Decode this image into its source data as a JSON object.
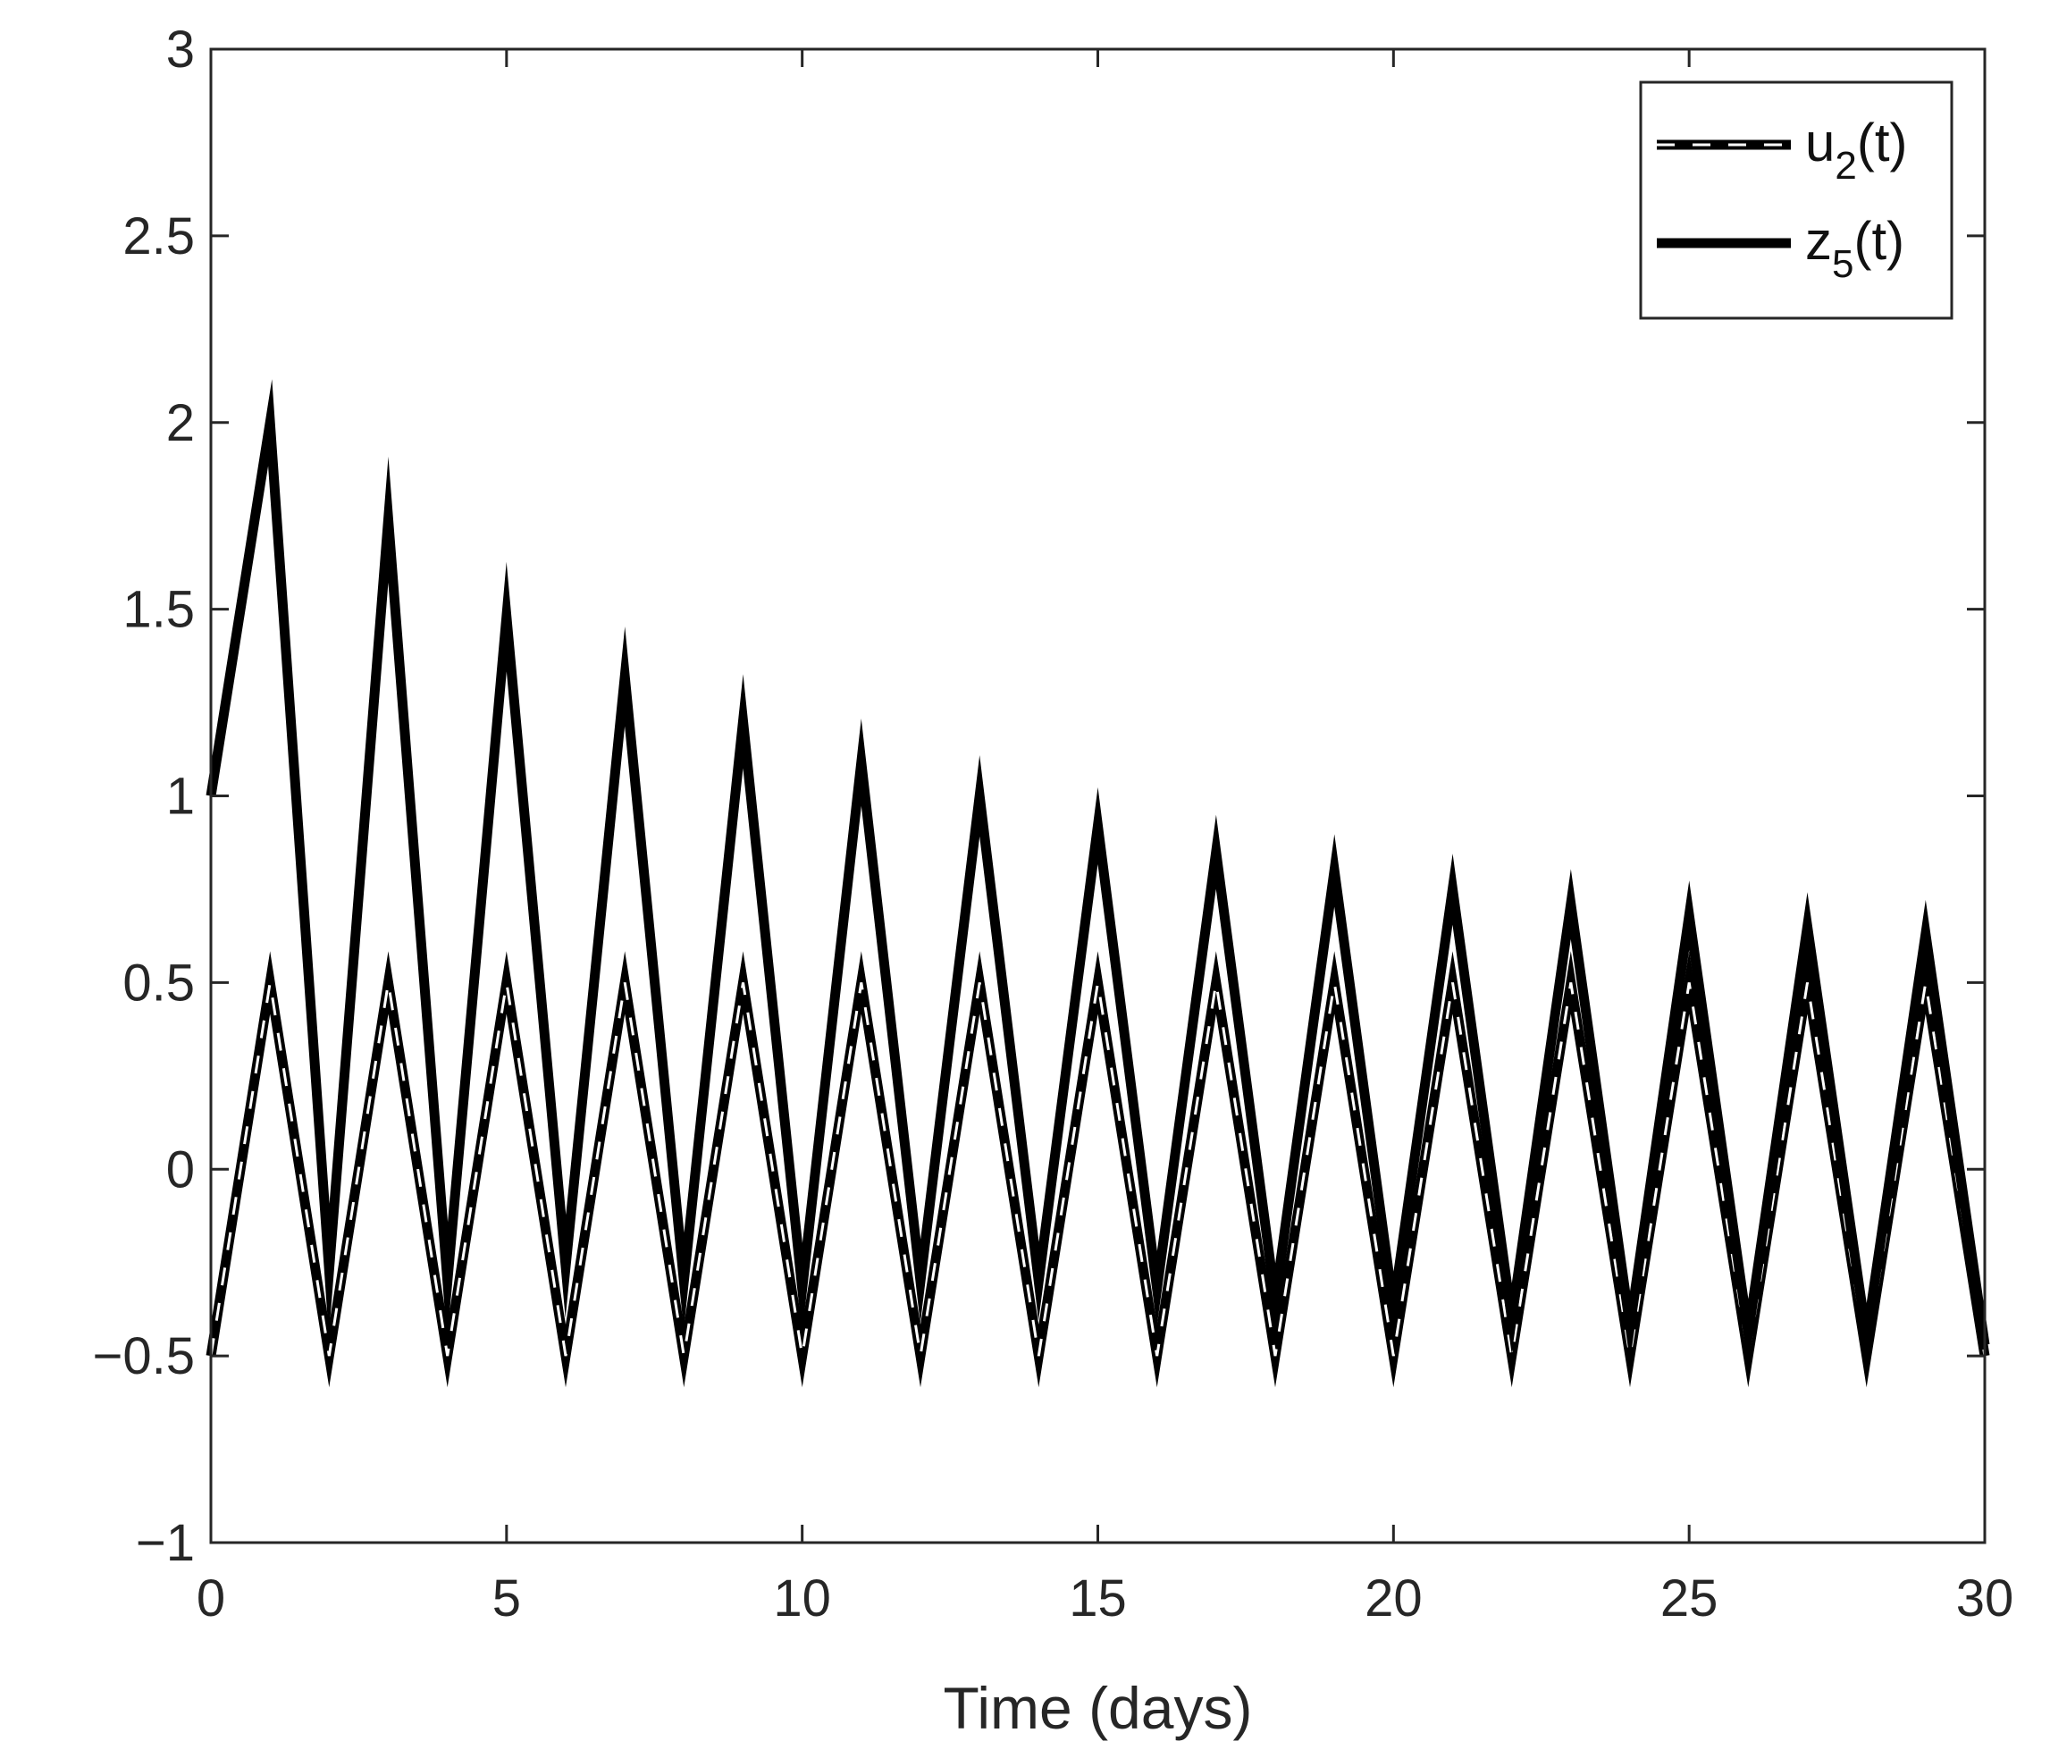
{
  "chart_data": {
    "type": "line",
    "title": "",
    "xlabel": "Time (days)",
    "ylabel": "",
    "xlim": [
      0,
      30
    ],
    "ylim": [
      -1,
      3
    ],
    "xticks": [
      0,
      5,
      10,
      15,
      20,
      25,
      30
    ],
    "xtick_labels": [
      "0",
      "5",
      "10",
      "15",
      "20",
      "25",
      "30"
    ],
    "yticks": [
      -1,
      -0.5,
      0,
      0.5,
      1,
      1.5,
      2,
      2.5,
      3
    ],
    "ytick_labels": [
      "−1",
      "−0.5",
      "0",
      "0.5",
      "1",
      "1.5",
      "2",
      "2.5",
      "3"
    ],
    "grid": false,
    "legend_position": "top-right",
    "series": [
      {
        "name": "u2(t)",
        "legend_main": "u",
        "legend_sub": "2",
        "legend_tail": "(t)",
        "style": "dashed",
        "color": "#000000",
        "x": [
          0,
          1,
          2,
          3,
          4,
          5,
          6,
          7,
          8,
          9,
          10,
          11,
          12,
          13,
          14,
          15,
          16,
          17,
          18,
          19,
          20,
          21,
          22,
          23,
          24,
          25,
          26,
          27,
          28,
          29,
          30
        ],
        "y": [
          -0.5,
          0.5,
          -0.5,
          0.5,
          -0.5,
          0.5,
          -0.5,
          0.5,
          -0.5,
          0.5,
          -0.5,
          0.5,
          -0.5,
          0.5,
          -0.5,
          0.5,
          -0.5,
          0.5,
          -0.5,
          0.5,
          -0.5,
          0.5,
          -0.5,
          0.5,
          -0.5,
          0.5,
          -0.5,
          0.5,
          -0.5,
          0.5,
          -0.5
        ]
      },
      {
        "name": "z5(t)",
        "legend_main": "z",
        "legend_sub": "5",
        "legend_tail": "(t)",
        "style": "solid",
        "color": "#000000",
        "x": [
          0,
          1,
          2,
          3,
          4,
          5,
          6,
          7,
          8,
          9,
          10,
          11,
          12,
          13,
          14,
          15,
          16,
          17,
          18,
          19,
          20,
          21,
          22,
          23,
          24,
          25,
          26,
          27,
          28,
          29,
          30
        ],
        "y": [
          1.0,
          2.0,
          -0.27,
          1.74,
          -0.3,
          1.48,
          -0.26,
          1.32,
          -0.3,
          1.2,
          -0.32,
          1.09,
          -0.3,
          1.0,
          -0.3,
          0.92,
          -0.32,
          0.85,
          -0.35,
          0.8,
          -0.37,
          0.75,
          -0.4,
          0.71,
          -0.42,
          0.68,
          -0.44,
          0.65,
          -0.45,
          0.63,
          -0.47
        ]
      }
    ]
  }
}
